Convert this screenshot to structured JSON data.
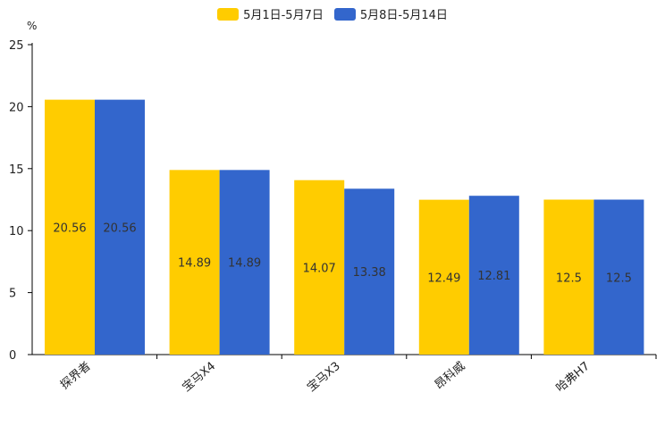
{
  "chart_data": {
    "type": "bar",
    "unit": "%",
    "categories": [
      "探界者",
      "宝马X4",
      "宝马X3",
      "昂科威",
      "哈弗H7"
    ],
    "series": [
      {
        "name": "5月1日-5月7日",
        "color": "#ffcc00",
        "values": [
          20.56,
          14.89,
          14.07,
          12.49,
          12.5
        ],
        "labels": [
          "20.56",
          "14.89",
          "14.07",
          "12.49",
          "12.5"
        ]
      },
      {
        "name": "5月8日-5月14日",
        "color": "#3366cc",
        "values": [
          20.56,
          14.89,
          13.38,
          12.81,
          12.5
        ],
        "labels": [
          "20.56",
          "14.89",
          "13.38",
          "12.81",
          "12.5"
        ]
      }
    ],
    "ylim": [
      0,
      25
    ],
    "yticks": [
      "0",
      "5",
      "10",
      "15",
      "20",
      "25"
    ],
    "legend_position": "top-center",
    "grid": false
  }
}
